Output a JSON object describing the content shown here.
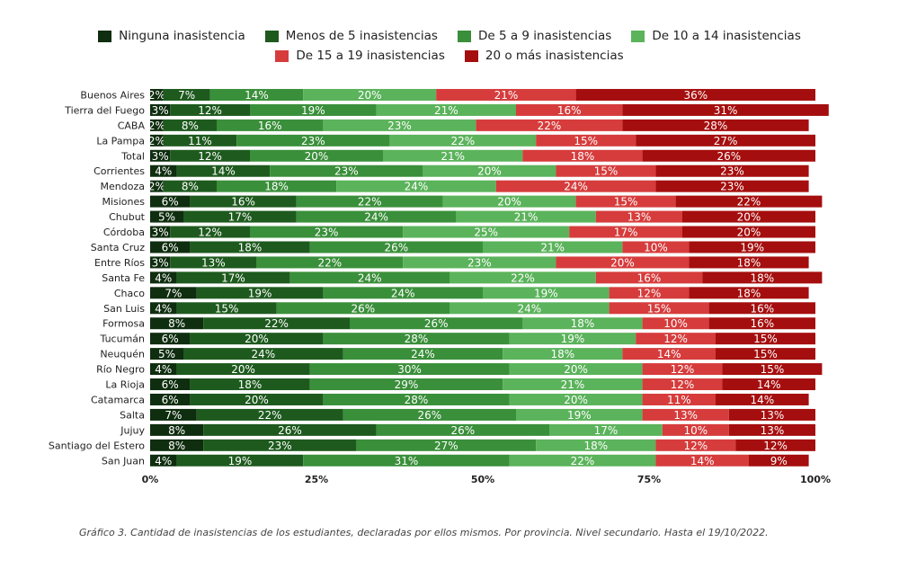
{
  "chart_data": {
    "type": "bar",
    "orientation": "horizontal",
    "stacked": true,
    "normalized": true,
    "legend_position": "top",
    "categories": [
      "Buenos Aires",
      "Tierra del Fuego",
      "CABA",
      "La Pampa",
      "Total",
      "Corrientes",
      "Mendoza",
      "Misiones",
      "Chubut",
      "Córdoba",
      "Santa Cruz",
      "Entre Ríos",
      "Santa Fe",
      "Chaco",
      "San Luis",
      "Formosa",
      "Tucumán",
      "Neuquén",
      "Río Negro",
      "La Rioja",
      "Catamarca",
      "Salta",
      "Jujuy",
      "Santiago del Estero",
      "San Juan"
    ],
    "series": [
      {
        "name": "Ninguna inasistencia",
        "color": "#0f2d0f",
        "values": [
          2,
          3,
          2,
          2,
          3,
          4,
          2,
          6,
          5,
          3,
          6,
          3,
          4,
          7,
          4,
          8,
          6,
          5,
          4,
          6,
          6,
          7,
          8,
          8,
          4
        ]
      },
      {
        "name": "Menos de 5 inasistencias",
        "color": "#1e5a1e",
        "values": [
          7,
          12,
          8,
          11,
          12,
          14,
          8,
          16,
          17,
          12,
          18,
          13,
          17,
          19,
          15,
          22,
          20,
          24,
          20,
          18,
          20,
          22,
          26,
          23,
          19
        ]
      },
      {
        "name": "De 5 a 9 inasistencias",
        "color": "#3a8f3a",
        "values": [
          14,
          19,
          16,
          23,
          20,
          23,
          18,
          22,
          24,
          23,
          26,
          22,
          24,
          24,
          26,
          26,
          28,
          24,
          30,
          29,
          28,
          26,
          26,
          27,
          31
        ]
      },
      {
        "name": "De 10 a 14 inasistencias",
        "color": "#5bb35b",
        "values": [
          20,
          21,
          23,
          22,
          21,
          20,
          24,
          20,
          21,
          25,
          21,
          23,
          22,
          19,
          24,
          18,
          19,
          18,
          20,
          21,
          20,
          19,
          17,
          18,
          22
        ]
      },
      {
        "name": "De 15 a 19 inasistencias",
        "color": "#d63c3c",
        "values": [
          21,
          16,
          22,
          15,
          18,
          15,
          24,
          15,
          13,
          17,
          10,
          20,
          16,
          12,
          15,
          10,
          12,
          14,
          12,
          12,
          11,
          13,
          10,
          12,
          14
        ]
      },
      {
        "name": "20 o más inasistencias",
        "color": "#a50e0e",
        "values": [
          36,
          31,
          28,
          27,
          26,
          23,
          23,
          22,
          20,
          20,
          19,
          18,
          18,
          18,
          16,
          16,
          15,
          15,
          15,
          14,
          14,
          13,
          13,
          12,
          9
        ]
      }
    ],
    "xticks": [
      "0%",
      "25%",
      "50%",
      "75%",
      "100%"
    ],
    "xlim": [
      0,
      100
    ],
    "grid": false
  },
  "caption": "Gráfico 3. Cantidad de inasistencias de los estudiantes, declaradas por ellos mismos. Por provincia. Nivel secundario. Hasta el 19/10/2022."
}
